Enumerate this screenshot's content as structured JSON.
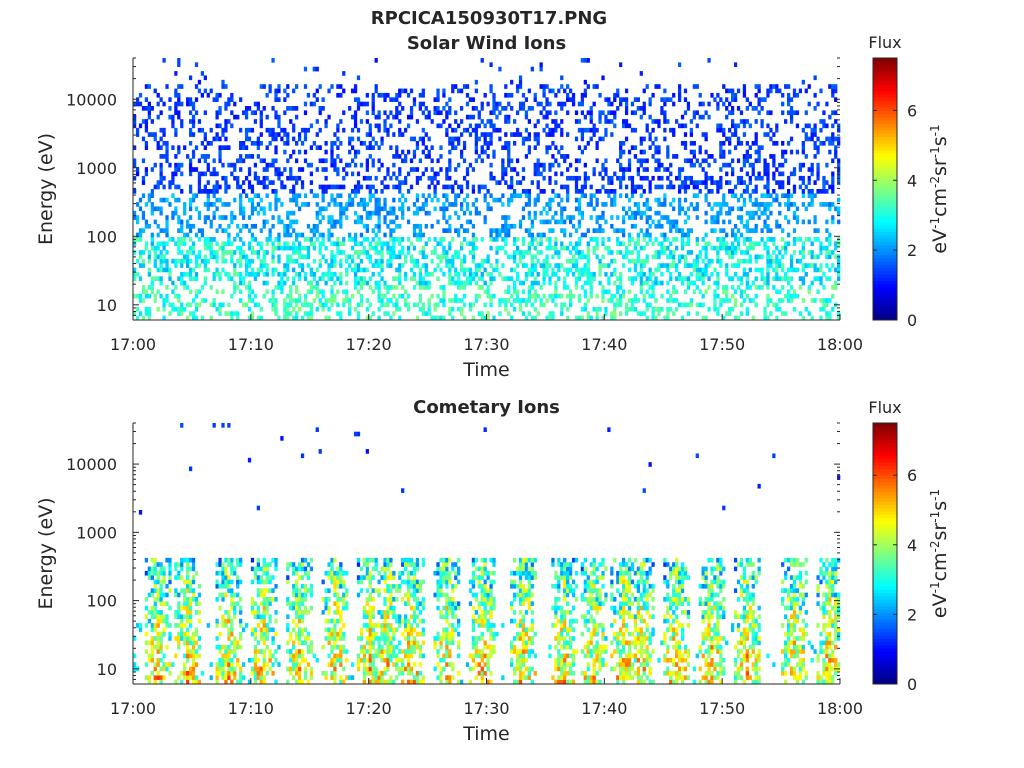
{
  "figure_title": "RPCICA150930T17.PNG",
  "colorbar_label_base": "eV",
  "colormap": "jet",
  "chart_data": [
    {
      "type": "heatmap",
      "title": "Solar Wind Ions",
      "xlabel": "Time",
      "ylabel": "Energy (eV)",
      "x_ticks": [
        "17:00",
        "17:10",
        "17:20",
        "17:30",
        "17:40",
        "17:50",
        "18:00"
      ],
      "xlim": [
        "17:00",
        "18:00"
      ],
      "y_scale": "log",
      "y_ticks": [
        10,
        100,
        1000,
        10000
      ],
      "ylim": [
        6,
        40000
      ],
      "colorbar": {
        "label": "Flux",
        "units": "eV-1cm-2sr-1s-1",
        "ticks": [
          0,
          2,
          4,
          6
        ],
        "range": [
          0,
          7.5
        ]
      },
      "pattern": "sparse-high-energy",
      "intensity": 1.0
    },
    {
      "type": "heatmap",
      "title": "Cometary Ions",
      "xlabel": "Time",
      "ylabel": "Energy (eV)",
      "x_ticks": [
        "17:00",
        "17:10",
        "17:20",
        "17:30",
        "17:40",
        "17:50",
        "18:00"
      ],
      "xlim": [
        "17:00",
        "18:00"
      ],
      "y_scale": "log",
      "y_ticks": [
        10,
        100,
        1000,
        10000
      ],
      "ylim": [
        6,
        40000
      ],
      "colorbar": {
        "label": "Flux",
        "units": "eV-1cm-2sr-1s-1",
        "ticks": [
          0,
          2,
          4,
          6
        ],
        "range": [
          0,
          7.5
        ]
      },
      "pattern": "bursts-low-energy",
      "burst_times_min": [
        2,
        4.5,
        8,
        11,
        14,
        17,
        20,
        21.5,
        23.5,
        26.5,
        29.5,
        33,
        36.5,
        39,
        41.5,
        43,
        46,
        49,
        52,
        56,
        59
      ],
      "intensity": 1.0
    }
  ]
}
